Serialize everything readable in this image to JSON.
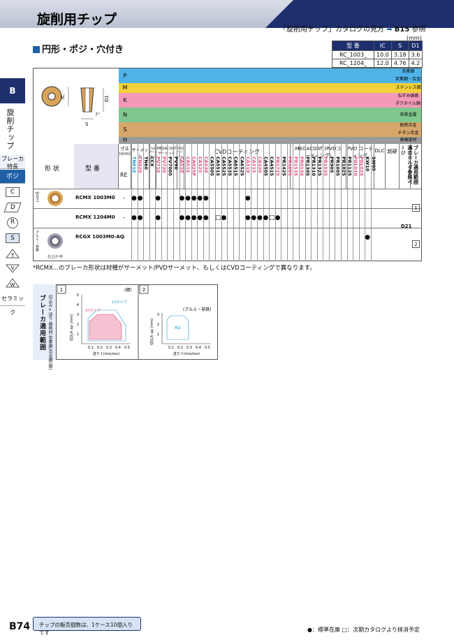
{
  "header": {
    "title": "旋削用チップ",
    "catalog_ref_prefix": "「旋削用チップ」カタログの見方",
    "catalog_ref_page": "B15",
    "catalog_ref_suffix": "参照"
  },
  "section_title": "円形・ポジ・穴付き",
  "side": {
    "tab": "B",
    "vertical_label": "旋削チップ",
    "items": [
      "ブレーカ特長",
      "ポジ",
      "C",
      "D",
      "R",
      "S",
      "T",
      "V",
      "W",
      "セラミック"
    ]
  },
  "dims": {
    "unit": "(mm)",
    "headers": [
      "型 番",
      "IC",
      "S",
      "D1"
    ],
    "rows": [
      [
        "RC_1003_",
        "10.0",
        "3.18",
        "3.6"
      ],
      [
        "RC_1204_",
        "12.0",
        "4.76",
        "4.2"
      ]
    ]
  },
  "drawing_labels": {
    "ic": "IC",
    "d1": "D1",
    "s": "S",
    "angle": "7°"
  },
  "materials": [
    {
      "letter": "P",
      "color": "#4fb3e8",
      "desc": "炭素鋼",
      "desc2": "炭素鋼・合金鋼"
    },
    {
      "letter": "M",
      "color": "#f2d13a",
      "desc": "ステンレス鋼"
    },
    {
      "letter": "K",
      "color": "#f29ab7",
      "desc": "ねずみ鋳鉄",
      "desc2": "ダクタイル鋳鉄"
    },
    {
      "letter": "N",
      "color": "#7fc78f",
      "desc": "非鉄金属"
    },
    {
      "letter": "S",
      "color": "#d7a76a",
      "desc": "耐熱合金",
      "desc2": "チタン合金"
    },
    {
      "letter": "H",
      "color": "#9a9a9a",
      "desc": "高硬度材"
    }
  ],
  "col_groups": {
    "dim": "寸法 (mm)",
    "cermet": "サーメット",
    "cvd_cermet": "CVD サーメット",
    "megacoat_cermet": "MEGACOAT サーメット",
    "pvd_cermet": "PVD サーメット",
    "cvd": "CVDコーティング",
    "megacoat": "MEGACOAT (PVDコーティング)",
    "pvd": "PVD コーティング",
    "dlc": "DLC",
    "carbide": "超硬",
    "holder": "適合ホルダ参照ページ",
    "breaker": "ブレーカ適用範囲",
    "shape": "形 状",
    "model": "型 番",
    "re": "RE"
  },
  "columns": [
    "TN610",
    "TN620",
    "TN60",
    "CCX",
    "PV710",
    "PV720",
    "PV7005",
    "PV90",
    "CA510",
    "CA515",
    "CA025P",
    "CA525",
    "CA530",
    "CA5505",
    "CA5515",
    "CA5525",
    "CA5535",
    "CA6515",
    "CA6525",
    "CA310",
    "CA315",
    "CA320",
    "CA4505",
    "CA4515",
    "PR1725",
    "PR1425",
    "PR1225",
    "PR1535",
    "PR015S",
    "PR1305",
    "PR1310",
    "PR1325",
    "PR1535",
    "PR905",
    "PR1005",
    "PR1025",
    "PR1125",
    "PDL010",
    "PDL025",
    "KW10",
    "SW05"
  ],
  "products": [
    {
      "shape_label": "中仕上",
      "name": "RCMX 1003M0",
      "re": "-",
      "breaker": "1",
      "holder": "D21"
    },
    {
      "shape_label": "",
      "name": "RCMX 1204M0",
      "re": "-",
      "breaker": "",
      "holder": ""
    },
    {
      "shape_label": "アルミ・非鉄",
      "name": "RCGX 1003M0-AQ",
      "re": "-",
      "breaker": "2",
      "holder": "",
      "finish": "仕上げ-中"
    }
  ],
  "note": "*RCMX...のブレーカ形状は材種がサーメット/PVDサーメット、もしくはCVDコーティングで異なります。",
  "breaker_chart": {
    "title": "ブレーカ適用範囲",
    "subtitle": "切込み×送り 被削材:炭素鋼/合金鋼(鋼)",
    "panel1": {
      "num": "1",
      "material": "(鋼)",
      "series": [
        "10タイプ",
        "12タイプ"
      ],
      "ylabel": "切込み ap (mm)",
      "xlabel": "送り f (mm/rev)",
      "yticks": [
        "5",
        "4",
        "3",
        "2",
        "1"
      ],
      "xticks": [
        "0.1",
        "0.2",
        "0.3",
        "0.4",
        "0.5"
      ]
    },
    "panel2": {
      "num": "2",
      "material": "(アルミ・非鉄)",
      "series": [
        "AQ"
      ],
      "ylabel": "切込み ap (mm)",
      "xlabel": "送り f (mm/rev)",
      "yticks": [
        "3",
        "2",
        "1"
      ],
      "xticks": [
        "0.1",
        "0.2",
        "0.3",
        "0.4",
        "0.5"
      ]
    }
  },
  "footer": {
    "page": "B74",
    "box": "チップの販売個数は、1ケース10個入りです",
    "legend": "●：標準在庫 □：次期カタログより抹消予定"
  }
}
